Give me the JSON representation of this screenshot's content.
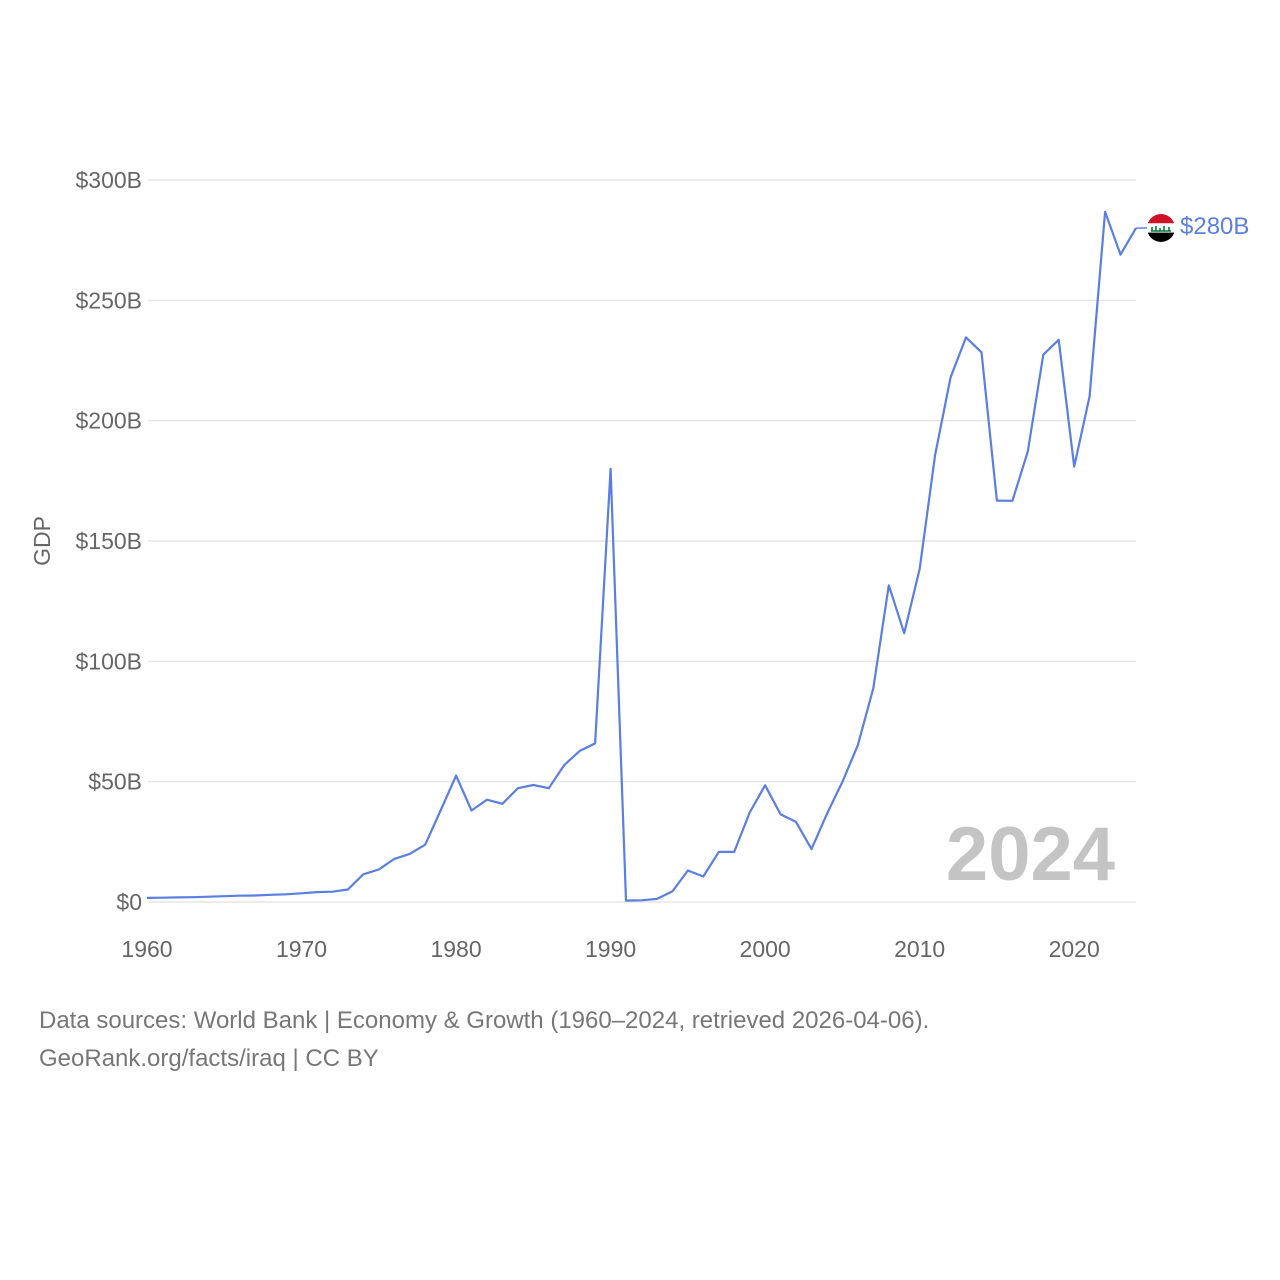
{
  "chart_data": {
    "type": "line",
    "title": "",
    "ylabel": "GDP",
    "xlabel": "",
    "ylim": [
      0,
      300
    ],
    "xlim": [
      1960,
      2024
    ],
    "y_ticks": [
      0,
      50,
      100,
      150,
      200,
      250,
      300
    ],
    "y_tick_labels": [
      "$0",
      "$50B",
      "$100B",
      "$150B",
      "$200B",
      "$250B",
      "$300B"
    ],
    "x_ticks": [
      1960,
      1970,
      1980,
      1990,
      2000,
      2010,
      2020
    ],
    "x_tick_labels": [
      "1960",
      "1970",
      "1980",
      "1990",
      "2000",
      "2010",
      "2020"
    ],
    "grid": true,
    "current_year_label": "2024",
    "end_label": "$280B",
    "series": [
      {
        "name": "Iraq",
        "color": "#5b7fe0",
        "x": [
          1960,
          1961,
          1962,
          1963,
          1964,
          1965,
          1966,
          1967,
          1968,
          1969,
          1970,
          1971,
          1972,
          1973,
          1974,
          1975,
          1976,
          1977,
          1978,
          1979,
          1980,
          1981,
          1982,
          1983,
          1984,
          1985,
          1986,
          1987,
          1988,
          1989,
          1990,
          1991,
          1992,
          1993,
          1994,
          1995,
          1996,
          1997,
          1998,
          1999,
          2000,
          2001,
          2002,
          2003,
          2004,
          2005,
          2006,
          2007,
          2008,
          2009,
          2010,
          2011,
          2012,
          2013,
          2014,
          2015,
          2016,
          2017,
          2018,
          2019,
          2020,
          2021,
          2022,
          2023,
          2024
        ],
        "values": [
          1.7,
          1.8,
          1.9,
          2.0,
          2.2,
          2.4,
          2.6,
          2.7,
          3.0,
          3.2,
          3.6,
          4.1,
          4.3,
          5.2,
          11.5,
          13.5,
          17.9,
          20.0,
          23.8,
          38.0,
          52.5,
          38.0,
          42.5,
          40.8,
          47.3,
          48.6,
          47.3,
          56.9,
          62.8,
          65.9,
          180.0,
          0.6,
          0.7,
          1.3,
          4.4,
          13.1,
          10.6,
          20.8,
          20.8,
          37.2,
          48.5,
          36.4,
          33.3,
          22.0,
          36.6,
          49.9,
          65.1,
          88.8,
          131.6,
          111.7,
          138.5,
          185.7,
          218.0,
          234.6,
          228.4,
          166.8,
          166.7,
          187.2,
          227.4,
          233.6,
          180.9,
          210.1,
          286.8,
          269.0,
          280.0
        ]
      }
    ]
  },
  "footer": {
    "line1": "Data sources: World Bank | Economy & Growth (1960–2024, retrieved 2026-04-06).",
    "line2": "GeoRank.org/facts/iraq | CC BY"
  },
  "flag": {
    "colors": [
      "#ce1126",
      "#ffffff",
      "#000000"
    ],
    "emblem_color": "#007a3d",
    "icon": "iraq-flag-icon"
  }
}
